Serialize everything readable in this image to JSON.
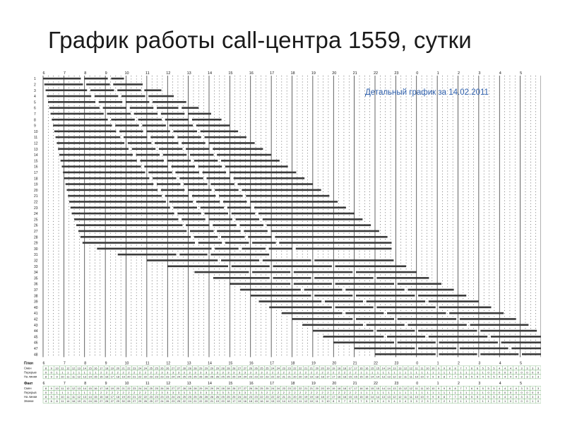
{
  "slide": {
    "title": "График работы call-центра 1559, сутки"
  },
  "schedule": {
    "subtitle": "Детальный график за 14.02.2011",
    "hours": [
      "6",
      "7",
      "8",
      "9",
      "10",
      "11",
      "12",
      "13",
      "14",
      "15",
      "16",
      "17",
      "18",
      "19",
      "20",
      "21",
      "22",
      "23",
      "0",
      "1",
      "2",
      "3",
      "4",
      "5"
    ],
    "rows": [
      {
        "n": "1",
        "s": 0.0,
        "e": 3.9,
        "br": [
          1.9,
          3.2
        ]
      },
      {
        "n": "2",
        "s": 0.06,
        "e": 4.8,
        "br": [
          2.0,
          3.3
        ]
      },
      {
        "n": "3",
        "s": 0.12,
        "e": 5.7,
        "br": [
          2.2,
          3.5,
          4.8
        ]
      },
      {
        "n": "4",
        "s": 0.18,
        "e": 6.3,
        "br": [
          2.4,
          3.7,
          5.0
        ]
      },
      {
        "n": "5",
        "s": 0.24,
        "e": 6.9,
        "br": [
          2.6,
          3.9,
          5.2
        ]
      },
      {
        "n": "6",
        "s": 0.3,
        "e": 7.5,
        "br": [
          2.8,
          4.1,
          5.4,
          6.6
        ]
      },
      {
        "n": "7",
        "s": 0.36,
        "e": 8.1,
        "br": [
          3.0,
          4.3,
          5.6,
          6.9
        ]
      },
      {
        "n": "8",
        "s": 0.42,
        "e": 8.6,
        "br": [
          3.2,
          4.5,
          5.8,
          7.1
        ]
      },
      {
        "n": "9",
        "s": 0.48,
        "e": 9.0,
        "br": [
          3.4,
          4.7,
          6.0,
          7.3
        ]
      },
      {
        "n": "10",
        "s": 0.54,
        "e": 9.4,
        "br": [
          3.6,
          4.9,
          6.2,
          7.5
        ]
      },
      {
        "n": "11",
        "s": 0.6,
        "e": 9.8,
        "br": [
          3.8,
          5.1,
          6.4,
          7.7
        ]
      },
      {
        "n": "12",
        "s": 0.66,
        "e": 10.2,
        "br": [
          4.0,
          5.3,
          6.6,
          7.9
        ]
      },
      {
        "n": "13",
        "s": 0.72,
        "e": 10.6,
        "br": [
          4.2,
          5.5,
          6.8,
          8.1
        ]
      },
      {
        "n": "14",
        "s": 0.78,
        "e": 11.0,
        "br": [
          4.4,
          5.7,
          7.0,
          8.3
        ]
      },
      {
        "n": "15",
        "s": 0.84,
        "e": 11.4,
        "br": [
          4.6,
          5.9,
          7.2,
          8.5
        ]
      },
      {
        "n": "16",
        "s": 0.9,
        "e": 11.8,
        "br": [
          4.8,
          6.1,
          7.4,
          8.7
        ]
      },
      {
        "n": "17",
        "s": 0.96,
        "e": 12.2,
        "br": [
          5.0,
          6.3,
          7.6,
          8.9
        ]
      },
      {
        "n": "18",
        "s": 1.02,
        "e": 12.6,
        "br": [
          5.2,
          6.5,
          7.8,
          9.1
        ]
      },
      {
        "n": "19",
        "s": 1.08,
        "e": 13.0,
        "br": [
          5.4,
          6.7,
          8.0,
          9.3
        ]
      },
      {
        "n": "20",
        "s": 1.14,
        "e": 13.4,
        "br": [
          5.6,
          6.9,
          8.2,
          9.5
        ]
      },
      {
        "n": "21",
        "s": 1.2,
        "e": 13.8,
        "br": [
          5.8,
          7.1,
          8.4,
          9.7
        ]
      },
      {
        "n": "22",
        "s": 1.26,
        "e": 14.2,
        "br": [
          6.0,
          7.3,
          8.6,
          9.9
        ]
      },
      {
        "n": "23",
        "s": 1.32,
        "e": 14.6,
        "br": [
          6.2,
          7.5,
          8.8,
          10.1
        ]
      },
      {
        "n": "24",
        "s": 1.38,
        "e": 15.0,
        "br": [
          6.4,
          7.7,
          9.0,
          10.3
        ]
      },
      {
        "n": "25",
        "s": 1.5,
        "e": 15.4,
        "br": [
          6.6,
          7.9,
          9.2,
          10.5
        ]
      },
      {
        "n": "26",
        "s": 1.6,
        "e": 15.8,
        "br": [
          6.8,
          8.1,
          9.4,
          10.7
        ]
      },
      {
        "n": "27",
        "s": 1.7,
        "e": 16.2,
        "br": [
          7.0,
          8.3,
          9.6,
          10.9
        ]
      },
      {
        "n": "28",
        "s": 1.8,
        "e": 16.6,
        "br": [
          7.2,
          8.5,
          9.8,
          11.1
        ]
      },
      {
        "n": "29",
        "s": 1.9,
        "e": 16.8,
        "br": [
          7.4,
          8.7,
          10.0,
          11.3
        ]
      },
      {
        "n": "30",
        "s": 2.6,
        "e": 16.8,
        "br": [
          8.2,
          9.5,
          10.8,
          12.1
        ]
      },
      {
        "n": "31",
        "s": 3.6,
        "e": 10.9,
        "br": [
          6.5,
          8.0
        ]
      },
      {
        "n": "32",
        "s": 5.0,
        "e": 16.9,
        "br": [
          8.5,
          10.5,
          13.0
        ]
      },
      {
        "n": "33",
        "s": 6.0,
        "e": 17.5,
        "br": [
          9.0,
          11.0,
          14.0
        ]
      },
      {
        "n": "34",
        "s": 7.3,
        "e": 18.0,
        "br": [
          10.0,
          12.0,
          15.0
        ]
      },
      {
        "n": "35",
        "s": 8.2,
        "e": 18.6,
        "br": [
          11.0,
          13.0,
          16.0
        ]
      },
      {
        "n": "36",
        "s": 9.0,
        "e": 19.2,
        "br": [
          12.0,
          14.0,
          17.0
        ]
      },
      {
        "n": "37",
        "s": 9.5,
        "e": 19.8,
        "br": [
          12.5,
          14.5,
          17.5
        ]
      },
      {
        "n": "38",
        "s": 10.0,
        "e": 20.4,
        "br": [
          13.0,
          15.0,
          18.0
        ]
      },
      {
        "n": "39",
        "s": 10.4,
        "e": 21.0,
        "br": [
          13.5,
          15.5,
          18.5
        ]
      },
      {
        "n": "40",
        "s": 10.9,
        "e": 21.6,
        "br": [
          14.0,
          16.0,
          19.0
        ]
      },
      {
        "n": "41",
        "s": 11.5,
        "e": 22.2,
        "br": [
          14.5,
          16.5,
          19.5
        ]
      },
      {
        "n": "42",
        "s": 12.0,
        "e": 22.8,
        "br": [
          15.0,
          17.0,
          20.0
        ]
      },
      {
        "n": "43",
        "s": 12.5,
        "e": 23.4,
        "br": [
          15.5,
          17.5,
          20.5
        ]
      },
      {
        "n": "44",
        "s": 13.0,
        "e": 23.8,
        "br": [
          16.0,
          18.0,
          21.0
        ]
      },
      {
        "n": "45",
        "s": 13.5,
        "e": 24.0,
        "br": [
          16.5,
          18.5,
          21.5
        ]
      },
      {
        "n": "46",
        "s": 14.0,
        "e": 24.0,
        "br": [
          17.0,
          19.0,
          22.0
        ]
      },
      {
        "n": "47",
        "s": 15.0,
        "e": 24.0,
        "br": [
          18.0,
          20.0,
          22.5
        ]
      },
      {
        "n": "48",
        "s": 16.0,
        "e": 24.0,
        "br": [
          19.0,
          21.0,
          23.0
        ]
      }
    ],
    "sections": [
      {
        "title": "План",
        "rows": [
          {
            "label": "Смен",
            "values": [
              8,
              9,
              10,
              11,
              12,
              12,
              13,
              14,
              15,
              16,
              17,
              18,
              19,
              20,
              21,
              22,
              23,
              24,
              24,
              25,
              25,
              26,
              26,
              27,
              27,
              28,
              28,
              28,
              29,
              29,
              29,
              29,
              28,
              28,
              28,
              27,
              27,
              26,
              26,
              25,
              25,
              24,
              24,
              23,
              23,
              22,
              22,
              21,
              21,
              20,
              20,
              19,
              19,
              18,
              18,
              17,
              17,
              16,
              16,
              15,
              15,
              14,
              14,
              13,
              13,
              12,
              12,
              11,
              11,
              10,
              10,
              9,
              9,
              8,
              8,
              7,
              7,
              6,
              6,
              5,
              5,
              5,
              4,
              4,
              4,
              4,
              3,
              3,
              3,
              3
            ]
          },
          {
            "label": "Перерыв",
            "values": [
              0,
              0,
              1,
              1,
              1,
              1,
              1,
              1,
              1,
              1,
              2,
              2,
              2,
              2,
              2,
              2,
              2,
              2,
              2,
              2,
              2,
              3,
              3,
              3,
              3,
              3,
              3,
              3,
              3,
              3,
              3,
              3,
              3,
              3,
              3,
              3,
              3,
              3,
              3,
              3,
              2,
              2,
              2,
              2,
              2,
              2,
              2,
              2,
              2,
              2,
              2,
              2,
              2,
              2,
              2,
              2,
              2,
              1,
              1,
              1,
              1,
              1,
              1,
              1,
              1,
              1,
              1,
              1,
              1,
              1,
              1,
              1,
              1,
              1,
              1,
              1,
              1,
              1,
              1,
              1,
              0,
              0,
              0,
              0,
              0,
              0,
              0,
              0,
              0,
              0
            ]
          },
          {
            "label": "На линии",
            "values": [
              8,
              9,
              9,
              10,
              11,
              11,
              12,
              13,
              14,
              15,
              15,
              16,
              17,
              18,
              19,
              20,
              21,
              22,
              22,
              23,
              23,
              23,
              23,
              24,
              24,
              25,
              25,
              25,
              26,
              26,
              26,
              26,
              25,
              25,
              25,
              24,
              24,
              23,
              23,
              22,
              23,
              22,
              22,
              21,
              21,
              20,
              20,
              19,
              19,
              18,
              18,
              17,
              17,
              16,
              16,
              15,
              15,
              15,
              15,
              14,
              14,
              13,
              13,
              12,
              12,
              11,
              11,
              10,
              10,
              9,
              9,
              8,
              8,
              7,
              7,
              6,
              6,
              5,
              5,
              4,
              5,
              5,
              4,
              4,
              4,
              4,
              3,
              3,
              3,
              3
            ]
          }
        ]
      },
      {
        "title": "Факт",
        "rows": [
          {
            "label": "Смен",
            "values": [
              8,
              9,
              10,
              11,
              12,
              12,
              13,
              14,
              15,
              16,
              17,
              18,
              19,
              20,
              21,
              22,
              23,
              24,
              24,
              25,
              25,
              26,
              26,
              27,
              27,
              28,
              28,
              28,
              29,
              29,
              29,
              29,
              28,
              28,
              28,
              27,
              27,
              26,
              26,
              25,
              25,
              24,
              24,
              23,
              23,
              22,
              22,
              21,
              21,
              20,
              20,
              19,
              19,
              18,
              18,
              17,
              17,
              16,
              16,
              15,
              15,
              14,
              14,
              13,
              13,
              12,
              12,
              11,
              11,
              10,
              10,
              9,
              9,
              8,
              8,
              7,
              7,
              6,
              6,
              5,
              5,
              5,
              4,
              4,
              4,
              4,
              3,
              3,
              3,
              3
            ]
          },
          {
            "label": "Перерыв",
            "values": [
              0,
              0,
              1,
              1,
              1,
              1,
              1,
              1,
              1,
              1,
              2,
              2,
              2,
              2,
              2,
              2,
              2,
              2,
              2,
              2,
              2,
              3,
              3,
              3,
              3,
              3,
              3,
              3,
              3,
              3,
              3,
              3,
              3,
              3,
              3,
              3,
              3,
              3,
              3,
              3,
              2,
              2,
              2,
              2,
              2,
              2,
              2,
              2,
              2,
              2,
              2,
              2,
              2,
              2,
              2,
              2,
              2,
              1,
              1,
              1,
              1,
              1,
              1,
              1,
              1,
              1,
              1,
              1,
              1,
              1,
              1,
              1,
              1,
              1,
              1,
              1,
              1,
              1,
              1,
              1,
              0,
              0,
              0,
              0,
              0,
              0,
              0,
              0,
              0,
              0
            ]
          },
          {
            "label": "На линии",
            "values": [
              8,
              9,
              9,
              10,
              11,
              11,
              12,
              13,
              14,
              15,
              15,
              16,
              17,
              18,
              19,
              20,
              21,
              22,
              22,
              23,
              23,
              23,
              23,
              24,
              24,
              25,
              25,
              25,
              26,
              26,
              26,
              26,
              25,
              25,
              25,
              24,
              24,
              23,
              23,
              22,
              23,
              22,
              22,
              21,
              21,
              20,
              20,
              19,
              19,
              18,
              18,
              17,
              17,
              16,
              16,
              15,
              15,
              15,
              15,
              14,
              14,
              13,
              13,
              12,
              12,
              11,
              11,
              10,
              10,
              9,
              9,
              8,
              8,
              7,
              7,
              6,
              6,
              5,
              5,
              4,
              5,
              5,
              4,
              4,
              4,
              4,
              3,
              3,
              3,
              3
            ]
          },
          {
            "label": "Звонки",
            "values": [
              4,
              6,
              8,
              11,
              14,
              16,
              19,
              21,
              24,
              26,
              27,
              28,
              27,
              29,
              30,
              28,
              27,
              29,
              26,
              25,
              27,
              24,
              26,
              23,
              25,
              22,
              24,
              21,
              22,
              20,
              21,
              19,
              20,
              18,
              17,
              19,
              16,
              18,
              15,
              16,
              14,
              15,
              13,
              14,
              12,
              13,
              11,
              12,
              10,
              11,
              9,
              10,
              8,
              9,
              7,
              8,
              6,
              7,
              5,
              6,
              5,
              4,
              5,
              4,
              3,
              4,
              3,
              3,
              2,
              3,
              2,
              2,
              2,
              1,
              2,
              1,
              1,
              1,
              1,
              1,
              1,
              1,
              0,
              1,
              0,
              1,
              0,
              0,
              1,
              0
            ]
          }
        ]
      }
    ]
  }
}
